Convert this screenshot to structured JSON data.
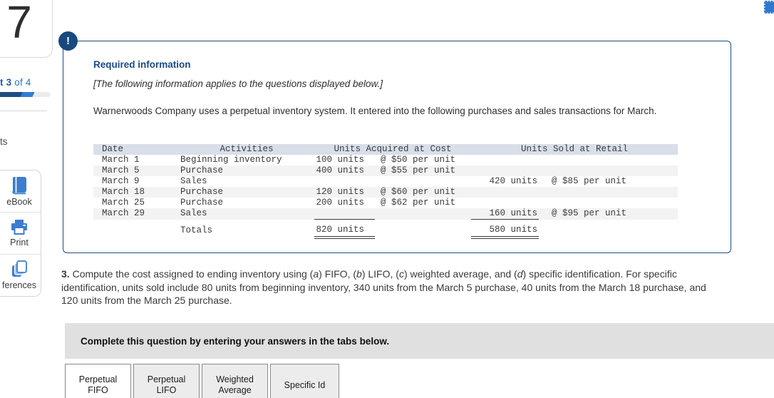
{
  "colors": {
    "accent_border": "#1e4e7e",
    "title_blue": "#1b4a8a",
    "badge_navy": "#17497f",
    "icon_blue": "#3c7dd0",
    "header_bg": "#d9dfe9",
    "alt_row": "#f3f3f4",
    "bar_gray": "#e0e0e0",
    "tab_inactive": "#ececec",
    "tab_border": "#8a8a8a",
    "prog_dark": "#1d4e80",
    "prog_bright": "#2e7fd2"
  },
  "sidebar": {
    "question_number": "7",
    "part_label_bold": "t 3",
    "part_label_rest": " of 4",
    "points_fragment": "ts",
    "tools": {
      "ebook": "eBook",
      "print": "Print",
      "references": "ferences"
    }
  },
  "required_box": {
    "badge": "!",
    "title": "Required information",
    "note": "[The following information applies to the questions displayed below.]",
    "intro": "Warnerwoods Company uses a perpetual inventory system. It entered into the following purchases and sales transactions for March."
  },
  "inventory_table": {
    "headers": {
      "date": "Date",
      "activities": "Activities",
      "acquired": "Units Acquired at Cost",
      "sold": "Units Sold at Retail"
    },
    "rows": [
      {
        "date": "March 1",
        "activity": "Beginning inventory",
        "acq_qty": "100 units",
        "acq_cost": "@ $50 per unit",
        "sold_qty": "",
        "sold_retail": ""
      },
      {
        "date": "March 5",
        "activity": "Purchase",
        "acq_qty": "400 units",
        "acq_cost": "@ $55 per unit",
        "sold_qty": "",
        "sold_retail": ""
      },
      {
        "date": "March 9",
        "activity": "Sales",
        "acq_qty": "",
        "acq_cost": "",
        "sold_qty": "420 units",
        "sold_retail": "@ $85 per unit"
      },
      {
        "date": "March 18",
        "activity": "Purchase",
        "acq_qty": "120 units",
        "acq_cost": "@ $60 per unit",
        "sold_qty": "",
        "sold_retail": ""
      },
      {
        "date": "March 25",
        "activity": "Purchase",
        "acq_qty": "200 units",
        "acq_cost": "@ $62 per unit",
        "sold_qty": "",
        "sold_retail": ""
      },
      {
        "date": "March 29",
        "activity": "Sales",
        "acq_qty": "",
        "acq_cost": "",
        "sold_qty": "160 units",
        "sold_retail": "@ $95 per unit"
      }
    ],
    "totals": {
      "label": "Totals",
      "acq_qty": "820 units",
      "sold_qty": "580 units"
    }
  },
  "question": {
    "segments": [
      {
        "t": "3.",
        "b": true
      },
      {
        "t": " Compute the cost assigned to ending inventory using ("
      },
      {
        "t": "a",
        "i": true
      },
      {
        "t": ") FIFO, ("
      },
      {
        "t": "b",
        "i": true
      },
      {
        "t": ") LIFO, ("
      },
      {
        "t": "c",
        "i": true
      },
      {
        "t": ") weighted average, and ("
      },
      {
        "t": "d",
        "i": true
      },
      {
        "t": ") specific identification. For specific identification, units sold include 80 units from beginning inventory, 340 units from the March 5 purchase, 40 units from the March 18 purchase, and 120 units from the March 25 purchase."
      }
    ]
  },
  "instruction_bar": {
    "text": "Complete this question by entering your answers in the tabs below."
  },
  "tabs": [
    {
      "label": "Perpetual FIFO",
      "active": true
    },
    {
      "label": "Perpetual LIFO",
      "active": false
    },
    {
      "label": "Weighted Average",
      "active": false
    },
    {
      "label": "Specific Id",
      "active": false
    }
  ]
}
